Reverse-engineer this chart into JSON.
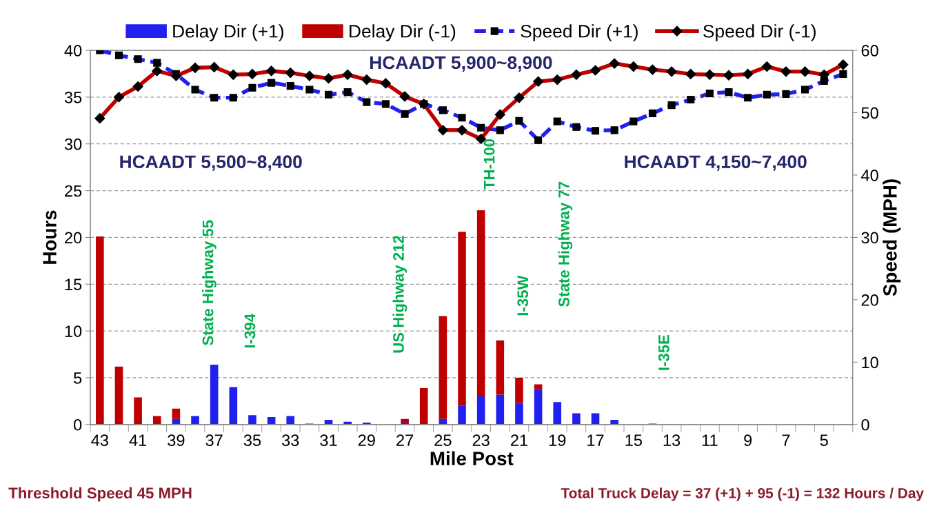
{
  "chart_data": {
    "type": "bar",
    "xlabel": "Mile Post",
    "ylabel": "Hours",
    "y2label": "Speed (MPH)",
    "categories": [
      "43",
      null,
      "41",
      null,
      "39",
      null,
      "37",
      null,
      "35",
      null,
      "33",
      null,
      "31",
      null,
      "29",
      null,
      "27",
      null,
      "25",
      null,
      "23",
      null,
      "21",
      null,
      "19",
      null,
      "17",
      null,
      "15",
      null,
      "13",
      null,
      "11",
      null,
      "9",
      null,
      "7",
      null,
      "5",
      null
    ],
    "stacked": true,
    "series": [
      {
        "name": "Delay Dir (+1)",
        "color": "#2020f0",
        "values": [
          0,
          0,
          0,
          0,
          0.6,
          0.9,
          6.4,
          4.0,
          1.0,
          0.8,
          0.9,
          0.1,
          0.5,
          0.3,
          0.2,
          0,
          0.2,
          0,
          0.6,
          2.0,
          3.0,
          3.2,
          2.3,
          3.8,
          2.4,
          1.2,
          1.2,
          0.5,
          0,
          0.1,
          0,
          0,
          0,
          0,
          0,
          0,
          0,
          0,
          0,
          0
        ]
      },
      {
        "name": "Delay Dir (-1)",
        "color": "#c00000",
        "values": [
          20.1,
          6.2,
          2.9,
          0.9,
          1.1,
          0,
          0,
          0,
          0,
          0,
          0,
          0,
          0,
          0,
          0,
          0,
          0.4,
          3.9,
          11.0,
          18.6,
          19.9,
          5.8,
          2.7,
          0.5,
          0,
          0,
          0,
          0,
          0,
          0,
          0,
          0,
          0,
          0,
          0,
          0,
          0,
          0,
          0,
          0
        ]
      },
      {
        "name": "Speed Dir (+1)",
        "type": "line",
        "axis": "y2",
        "color": "#2020f0",
        "line_style": "dashed",
        "marker": "square",
        "values": [
          60,
          59.2,
          58.6,
          58.0,
          56.2,
          53.7,
          52.4,
          52.4,
          54.0,
          54.8,
          54.3,
          53.7,
          52.9,
          53.3,
          51.7,
          51.4,
          49.8,
          51.4,
          50.4,
          49.2,
          47.6,
          47.2,
          48.7,
          45.6,
          48.6,
          47.7,
          47.1,
          47.2,
          48.6,
          49.9,
          51.2,
          52.1,
          53.1,
          53.3,
          52.4,
          52.9,
          53.0,
          53.7,
          55.1,
          56.2
        ]
      },
      {
        "name": "Speed Dir (-1)",
        "type": "line",
        "axis": "y2",
        "color": "#c00000",
        "line_style": "solid",
        "marker": "diamond",
        "values": [
          49.1,
          52.5,
          54.2,
          56.7,
          55.9,
          57.2,
          57.3,
          56.1,
          56.2,
          56.7,
          56.4,
          55.9,
          55.5,
          56.1,
          55.3,
          54.7,
          52.6,
          51.4,
          47.2,
          47.2,
          45.8,
          49.7,
          52.4,
          55.0,
          55.3,
          56.1,
          56.8,
          57.9,
          57.4,
          56.9,
          56.6,
          56.2,
          56.1,
          56.0,
          56.2,
          57.4,
          56.6,
          56.6,
          56.1,
          57.7
        ]
      }
    ],
    "ylim": [
      0,
      40
    ],
    "yticks": [
      0,
      5,
      10,
      15,
      20,
      25,
      30,
      35,
      40
    ],
    "y2lim": [
      0,
      60
    ],
    "y2ticks": [
      0,
      10,
      20,
      30,
      40,
      50,
      60
    ],
    "grid": "y",
    "legend": "top",
    "annotations": [
      "HCAADT 5,900~8,900",
      "HCAADT 5,500~8,400",
      "HCAADT 4,150~7,400",
      "State Highway 55",
      "I-394",
      "US Highway 212",
      "TH-100",
      "I-35W",
      "State Highway 77",
      "I-35E",
      "Threshold Speed 45 MPH",
      "Total Truck Delay = 37 (+1) + 95 (-1) = 132 Hours / Day"
    ]
  }
}
